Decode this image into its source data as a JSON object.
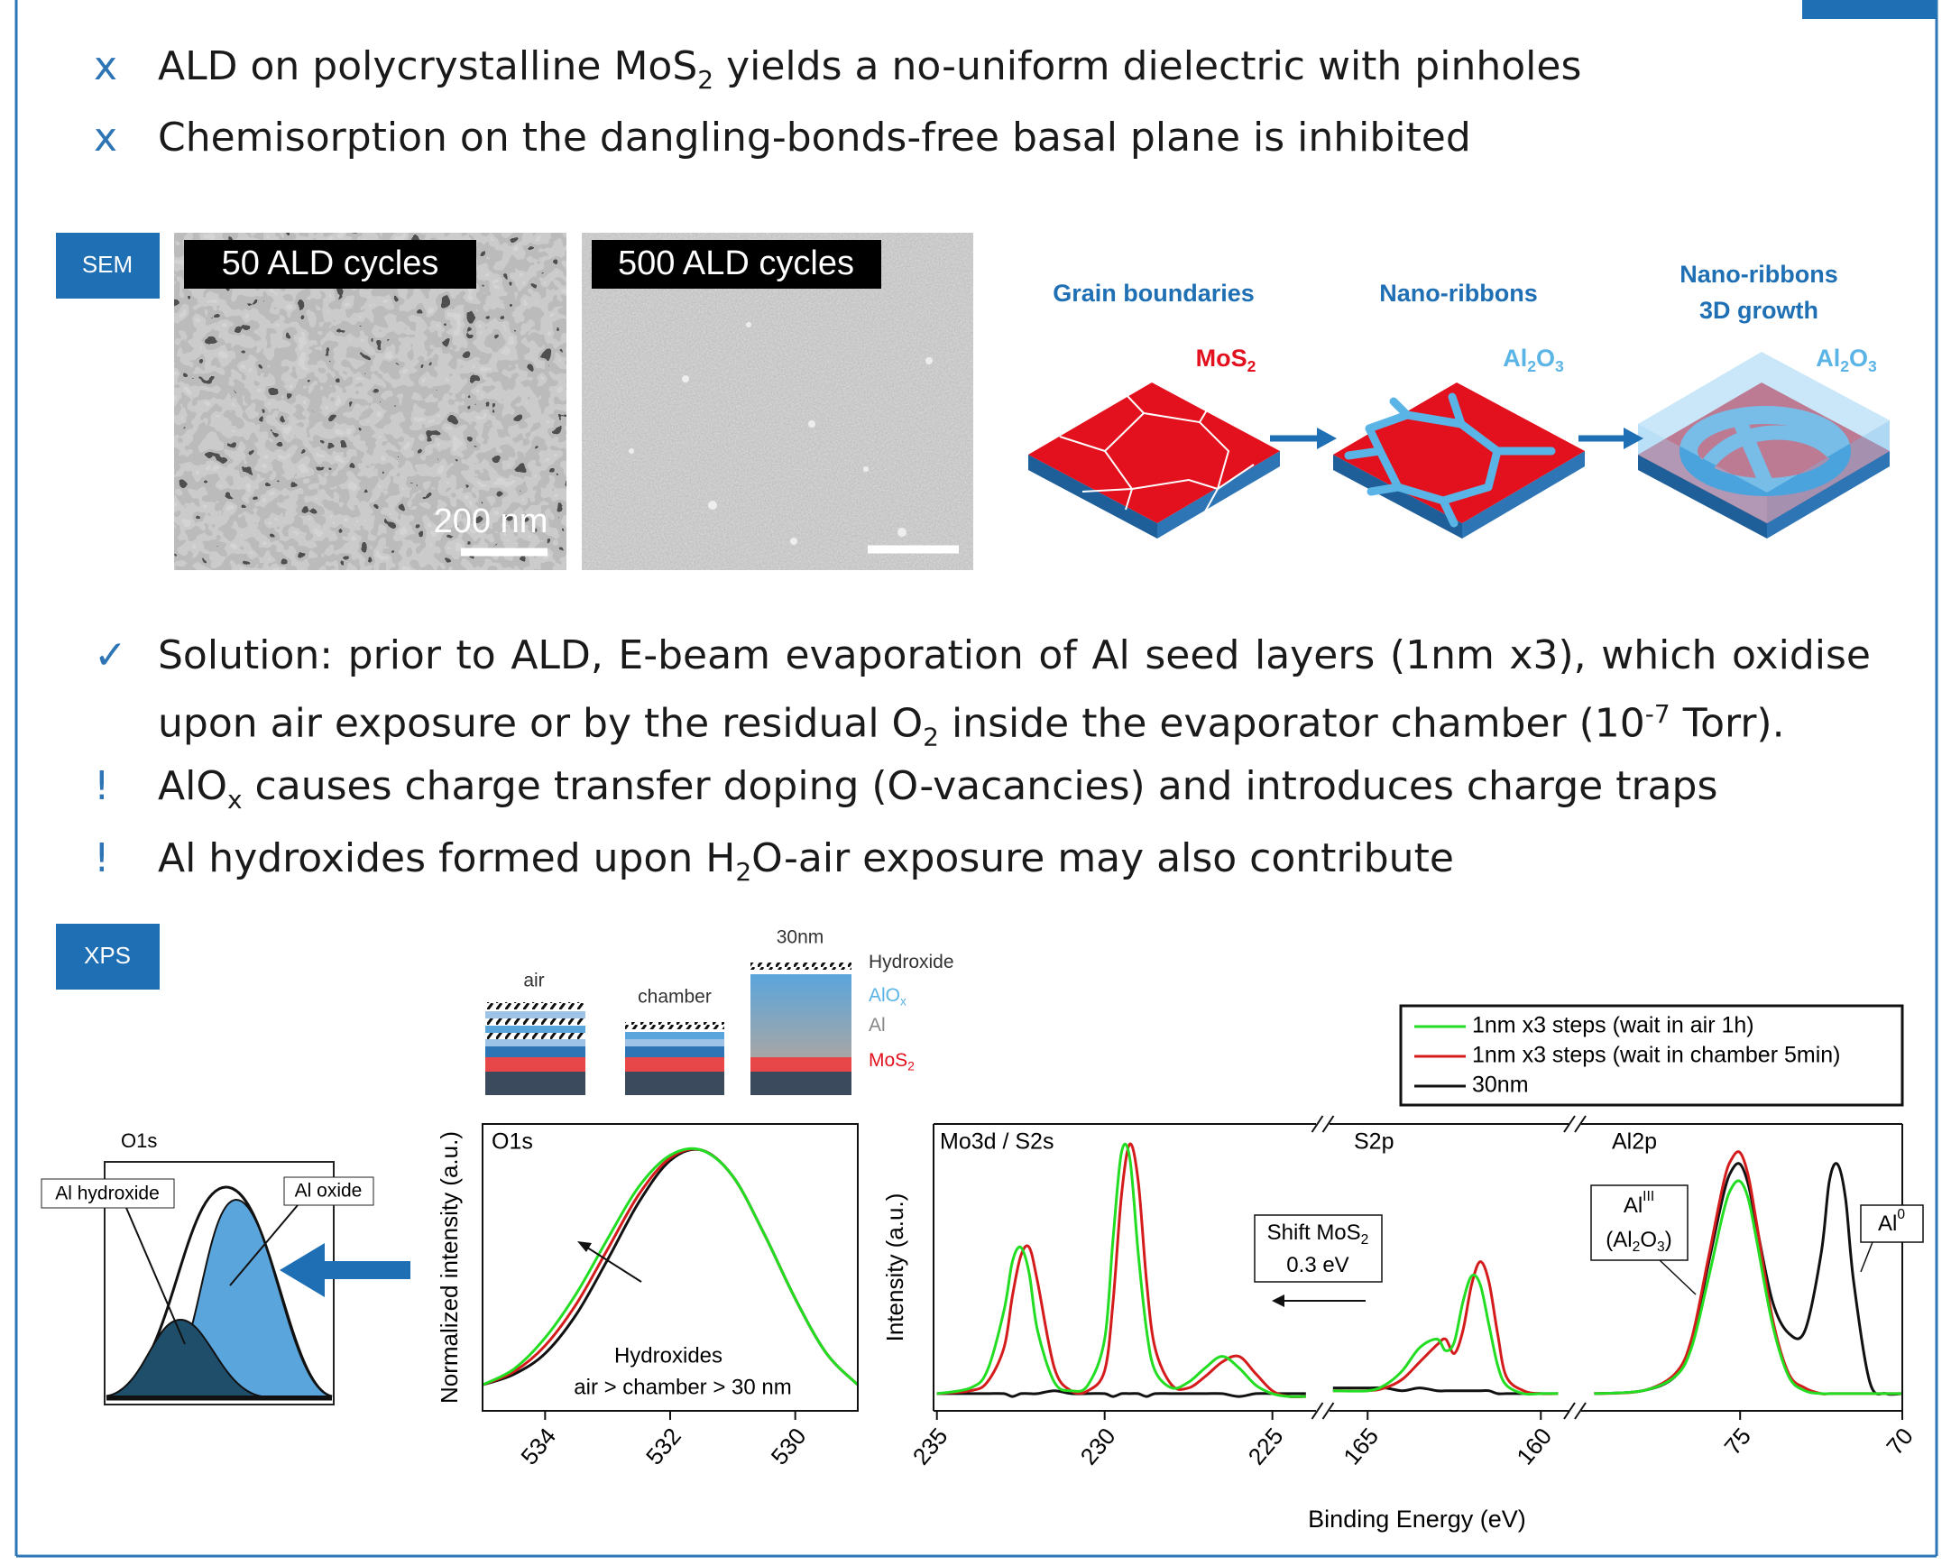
{
  "bullets_top": [
    {
      "marker": "x",
      "text": [
        {
          "text": "ALD on polycrystalline MoS"
        },
        {
          "sub": "2"
        },
        {
          "text": " yields a no-uniform dielectric with pinholes"
        }
      ]
    },
    {
      "marker": "x",
      "text": [
        {
          "text": "Chemisorption on the dangling-bonds-free basal plane is inhibited"
        }
      ]
    }
  ],
  "sem": {
    "label": "SEM",
    "images": [
      {
        "caption": "50 ALD cycles",
        "scale_bar": "200 nm"
      },
      {
        "caption": "500 ALD cycles"
      }
    ]
  },
  "schematic": {
    "stages": [
      {
        "title": [
          "Grain boundaries"
        ],
        "material": [
          {
            "text": "MoS"
          },
          {
            "sub": "2"
          }
        ]
      },
      {
        "title": [
          "Nano-ribbons"
        ],
        "material": [
          {
            "text": "Al"
          },
          {
            "sub": "2"
          },
          {
            "text": "O"
          },
          {
            "sub": "3"
          }
        ]
      },
      {
        "title": [
          "Nano-ribbons",
          "3D growth"
        ],
        "material": [
          {
            "text": "Al"
          },
          {
            "sub": "2"
          },
          {
            "text": "O"
          },
          {
            "sub": "3"
          }
        ]
      }
    ]
  },
  "bullets_bottom": [
    {
      "marker": "✓",
      "text": [
        {
          "text": "Solution: prior to ALD, E-beam evaporation of Al seed layers (1nm x3), which oxidise upon air exposure or by the residual O"
        },
        {
          "sub": "2"
        },
        {
          "text": " inside the evaporator chamber (10"
        },
        {
          "sup": "-7"
        },
        {
          "text": " Torr)."
        }
      ]
    },
    {
      "marker": "!",
      "text": [
        {
          "text": "AlO"
        },
        {
          "sub": "x"
        },
        {
          "text": " causes charge transfer doping (O-vacancies) and introduces charge traps"
        }
      ]
    },
    {
      "marker": "!",
      "text": [
        {
          "text": "Al hydroxides formed upon H"
        },
        {
          "sub": "2"
        },
        {
          "text": "O-air exposure may also contribute"
        }
      ]
    }
  ],
  "xps": {
    "label": "XPS",
    "o1s_scheme": {
      "title": "O1s",
      "labels": [
        "Al hydroxide",
        "Al oxide"
      ]
    },
    "stacks": {
      "columns": [
        "air",
        "chamber",
        "30nm"
      ],
      "layers": [
        [
          {
            "text": "Hydroxide"
          }
        ],
        [
          {
            "text": "AlO"
          },
          {
            "sub": "x"
          }
        ],
        [
          {
            "text": "Al"
          }
        ],
        [
          {
            "text": "MoS"
          },
          {
            "sub": "2"
          }
        ]
      ]
    }
  },
  "chart_data": [
    {
      "type": "line",
      "panel_label": "O1s",
      "ylabel": "Normalized intensity (a.u.)",
      "x": [
        535,
        534.5,
        534,
        533.5,
        533,
        532.5,
        532,
        531.5,
        531,
        530.5,
        530,
        529.5,
        529
      ],
      "xlim": [
        535,
        529
      ],
      "xticks": [
        534,
        532,
        530
      ],
      "ylim": [
        0,
        1.1
      ],
      "series": [
        {
          "color": "#22dd22",
          "values": [
            0.1,
            0.16,
            0.28,
            0.45,
            0.66,
            0.86,
            0.98,
            1.0,
            0.9,
            0.68,
            0.43,
            0.22,
            0.1
          ]
        },
        {
          "color": "#d41c1c",
          "values": [
            0.1,
            0.15,
            0.25,
            0.41,
            0.62,
            0.83,
            0.97,
            1.0,
            0.9,
            0.68,
            0.43,
            0.22,
            0.1
          ]
        },
        {
          "color": "#111111",
          "values": [
            0.1,
            0.14,
            0.22,
            0.37,
            0.58,
            0.8,
            0.96,
            1.0,
            0.9,
            0.68,
            0.43,
            0.22,
            0.1
          ]
        }
      ],
      "annotations": [
        "Hydroxides",
        "air > chamber > 30 nm"
      ]
    },
    {
      "type": "broken-line",
      "ylabel": "Intensity (a.u.)",
      "xlabel": "Binding Energy (eV)",
      "ylim": [
        0,
        1
      ],
      "legend": "top-right",
      "series": [
        {
          "name": "1nm x3 steps (wait in air 1h)",
          "color": "#22dd22"
        },
        {
          "name": "1nm x3 steps (wait in chamber 5min)",
          "color": "#d41c1c"
        },
        {
          "name": "30nm",
          "color": "#111111"
        }
      ],
      "panels": [
        {
          "label": "Mo3d / S2s",
          "xlim": [
            235.1,
            223.7
          ],
          "xticks": [
            235,
            230,
            225
          ],
          "x": [
            235,
            234,
            233.5,
            233,
            232.75,
            232.5,
            232.25,
            232,
            231.5,
            231,
            230.5,
            230,
            229.75,
            229.5,
            229.25,
            229,
            228.75,
            228.5,
            228,
            227.5,
            227,
            226.5,
            226,
            225.5,
            225,
            224.5,
            224
          ],
          "values": [
            [
              0.06,
              0.08,
              0.14,
              0.35,
              0.52,
              0.57,
              0.48,
              0.28,
              0.1,
              0.07,
              0.09,
              0.25,
              0.6,
              0.9,
              0.88,
              0.55,
              0.28,
              0.14,
              0.08,
              0.1,
              0.15,
              0.19,
              0.15,
              0.09,
              0.06,
              0.05,
              0.05
            ],
            [
              0.06,
              0.07,
              0.1,
              0.22,
              0.4,
              0.54,
              0.57,
              0.45,
              0.15,
              0.07,
              0.07,
              0.14,
              0.38,
              0.75,
              0.93,
              0.8,
              0.45,
              0.22,
              0.09,
              0.08,
              0.12,
              0.17,
              0.19,
              0.13,
              0.07,
              0.05,
              0.05
            ],
            [
              0.06,
              0.06,
              0.06,
              0.06,
              0.05,
              0.06,
              0.06,
              0.06,
              0.07,
              0.06,
              0.06,
              0.06,
              0.05,
              0.06,
              0.06,
              0.06,
              0.05,
              0.06,
              0.06,
              0.06,
              0.06,
              0.06,
              0.05,
              0.06,
              0.06,
              0.06,
              0.06
            ]
          ]
        },
        {
          "label": "S2p",
          "xlim": [
            166.1,
            159.2
          ],
          "xticks": [
            165,
            160
          ],
          "x": [
            166,
            165,
            164.5,
            164,
            163.5,
            163,
            162.75,
            162.5,
            162.25,
            162,
            161.75,
            161.5,
            161.25,
            161,
            160.5,
            160,
            159.5
          ],
          "values": [
            [
              0.07,
              0.07,
              0.09,
              0.14,
              0.22,
              0.25,
              0.21,
              0.24,
              0.38,
              0.47,
              0.44,
              0.3,
              0.16,
              0.09,
              0.06,
              0.06,
              0.06
            ],
            [
              0.07,
              0.07,
              0.08,
              0.11,
              0.17,
              0.23,
              0.25,
              0.2,
              0.28,
              0.44,
              0.52,
              0.45,
              0.27,
              0.12,
              0.07,
              0.06,
              0.06
            ],
            [
              0.08,
              0.08,
              0.08,
              0.07,
              0.08,
              0.07,
              0.07,
              0.07,
              0.07,
              0.07,
              0.07,
              0.07,
              0.06,
              0.06,
              0.06,
              0.06,
              0.06
            ]
          ]
        },
        {
          "label": "Al2p",
          "xlim": [
            79.9,
            70
          ],
          "xticks": [
            75,
            70
          ],
          "x": [
            79.5,
            78,
            77,
            76.5,
            76,
            75.5,
            75.25,
            75,
            74.75,
            74.5,
            74,
            73.5,
            73,
            72.5,
            72.25,
            72,
            71.75,
            71.5,
            71,
            70.5,
            70
          ],
          "values": [
            [
              0.06,
              0.07,
              0.12,
              0.22,
              0.45,
              0.7,
              0.78,
              0.8,
              0.74,
              0.6,
              0.3,
              0.12,
              0.07,
              0.06,
              0.06,
              0.06,
              0.06,
              0.06,
              0.06,
              0.06,
              0.06
            ],
            [
              0.06,
              0.07,
              0.13,
              0.25,
              0.52,
              0.8,
              0.88,
              0.9,
              0.82,
              0.66,
              0.32,
              0.13,
              0.08,
              0.06,
              0.06,
              0.06,
              0.06,
              0.06,
              0.06,
              0.06,
              0.06
            ],
            [
              0.06,
              0.07,
              0.12,
              0.24,
              0.5,
              0.76,
              0.84,
              0.86,
              0.79,
              0.65,
              0.38,
              0.27,
              0.28,
              0.55,
              0.8,
              0.86,
              0.74,
              0.45,
              0.1,
              0.06,
              0.06
            ]
          ]
        }
      ],
      "annotations": {
        "shift": [
          [
            {
              "text": "Shift MoS"
            },
            {
              "sub": "2"
            }
          ],
          [
            {
              "text": "0.3 eV"
            }
          ]
        ],
        "al3": [
          [
            {
              "text": "Al"
            },
            {
              "sup": "III"
            }
          ],
          [
            {
              "text": "(Al"
            },
            {
              "sub": "2"
            },
            {
              "text": "O"
            },
            {
              "sub": "3"
            },
            {
              "text": ")"
            }
          ]
        ],
        "al0": [
          {
            "text": "Al"
          },
          {
            "sup": "0"
          }
        ]
      }
    }
  ]
}
